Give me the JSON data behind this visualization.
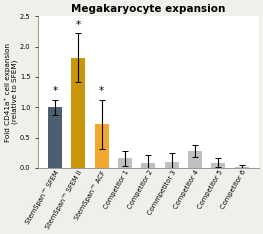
{
  "title": "Megakaryocyte expansion",
  "ylabel": "Fold CD41a⁺ cell expansion\n(relative to SFEM)",
  "categories": [
    "StemSpan™ SFEM",
    "StemSpan™ SFEM II",
    "StemSpan™ ACF",
    "Competitor 1",
    "Competitor 2",
    "Commpetitor 3",
    "Competitor 4",
    "Competitor 5",
    "Competitor 6"
  ],
  "values": [
    1.0,
    1.82,
    0.72,
    0.16,
    0.09,
    0.1,
    0.28,
    0.09,
    0.02
  ],
  "errors": [
    0.12,
    0.4,
    0.4,
    0.12,
    0.12,
    0.14,
    0.1,
    0.08,
    0.03
  ],
  "bar_colors": [
    "#4d5f6e",
    "#c8960a",
    "#f0a830",
    "#c0c0c0",
    "#c0c0c0",
    "#c0c0c0",
    "#c0c0c0",
    "#c0c0c0",
    "#c0c0c0"
  ],
  "star_indices": [
    0,
    1,
    2
  ],
  "ylim": [
    0,
    2.5
  ],
  "yticks": [
    0.0,
    0.5,
    1.0,
    1.5,
    2.0,
    2.5
  ],
  "fig_bg": "#f0f0eb",
  "plot_bg": "#ffffff",
  "title_fontsize": 7.5,
  "ylabel_fontsize": 5.2,
  "tick_fontsize": 4.8,
  "star_fontsize": 7.5
}
